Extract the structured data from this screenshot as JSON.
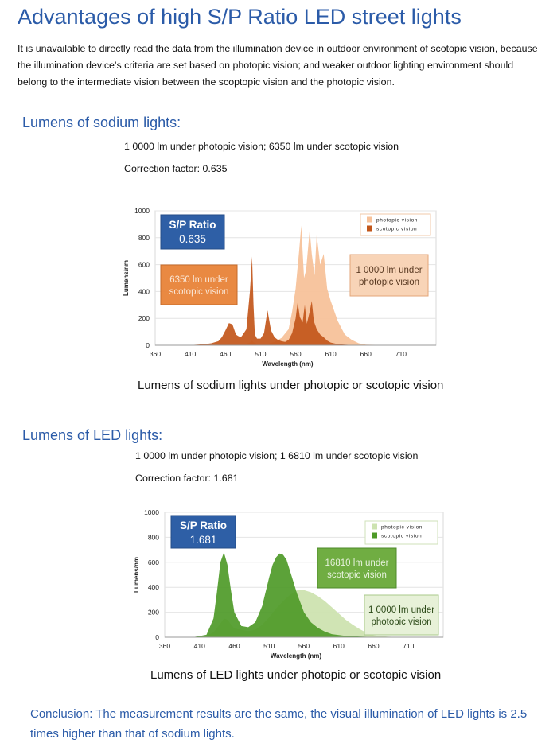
{
  "title": "Advantages of high S/P Ratio LED street lights",
  "intro": "It is unavailable to directly read the data from the illumination device in outdoor environment of scotopic vision, because the illumination device’s criteria are set based on photopic vision; and weaker outdoor lighting environment should belong to the intermediate vision between the scoptopic vision and the photopic vision.",
  "sodium": {
    "heading": "Lumens of sodium lights:",
    "lumens_line": "1 0000 lm under photopic vision; 6350 lm under scotopic vision",
    "factor_line": "Correction factor: 0.635",
    "caption": "Lumens of sodium lights under photopic or scotopic vision"
  },
  "led": {
    "heading": "Lumens of LED lights:",
    "lumens_line": "1 0000 lm under photopic vision; 1 6810 lm under scotopic vision",
    "factor_line": "Correction factor: 1.681",
    "caption": "Lumens of LED lights under photopic or scotopic vision"
  },
  "conclusion": "Conclusion: The measurement results are the same, the visual illumination of LED lights is 2.5 times higher than that of sodium lights.",
  "chart_data": [
    {
      "type": "area",
      "xlabel": "Wavelength (nm)",
      "ylabel": "Lumens/nm",
      "xlim": [
        360,
        760
      ],
      "ylim": [
        0,
        1000
      ],
      "x_ticks": [
        360,
        410,
        460,
        510,
        560,
        610,
        660,
        710
      ],
      "y_ticks": [
        0,
        200,
        400,
        600,
        800,
        1000
      ],
      "grid": true,
      "legend_position": "top-right",
      "ratio_box": {
        "label": "S/P Ratio",
        "value": "0.635"
      },
      "annotations": [
        {
          "text": "6350 lm under scotopic vision",
          "series": "scotopic vision"
        },
        {
          "text": "1 0000 lm under photopic vision",
          "series": "photopic vision"
        }
      ],
      "series": [
        {
          "name": "photopic vision",
          "color": "#f7c29a",
          "x": [
            380,
            420,
            440,
            450,
            460,
            465,
            470,
            480,
            490,
            495,
            498,
            500,
            505,
            510,
            520,
            530,
            540,
            550,
            555,
            560,
            565,
            568,
            572,
            575,
            580,
            583,
            587,
            590,
            595,
            600,
            605,
            610,
            620,
            630,
            640,
            650,
            660,
            700
          ],
          "y": [
            0,
            0,
            3,
            5,
            8,
            14,
            8,
            6,
            12,
            20,
            35,
            22,
            10,
            10,
            10,
            25,
            55,
            120,
            250,
            420,
            700,
            890,
            500,
            560,
            860,
            680,
            520,
            820,
            600,
            680,
            420,
            330,
            180,
            80,
            40,
            15,
            5,
            0
          ]
        },
        {
          "name": "scotopic vision",
          "color": "#c2561a",
          "x": [
            380,
            410,
            420,
            430,
            440,
            450,
            455,
            460,
            465,
            470,
            475,
            478,
            482,
            485,
            490,
            495,
            498,
            500,
            502,
            505,
            510,
            515,
            520,
            525,
            530,
            535,
            540,
            545,
            550,
            555,
            560,
            563,
            566,
            570,
            573,
            576,
            580,
            583,
            586,
            590,
            595,
            600,
            605,
            610,
            620,
            630,
            640,
            700
          ],
          "y": [
            0,
            2,
            5,
            8,
            15,
            30,
            60,
            110,
            165,
            155,
            80,
            70,
            60,
            80,
            120,
            400,
            660,
            300,
            80,
            50,
            50,
            90,
            260,
            110,
            60,
            40,
            30,
            25,
            40,
            90,
            200,
            320,
            210,
            170,
            300,
            160,
            250,
            330,
            180,
            120,
            80,
            60,
            35,
            20,
            8,
            4,
            2,
            0
          ]
        }
      ]
    },
    {
      "type": "area",
      "xlabel": "Wavelength (nm)",
      "ylabel": "Lumens/nm",
      "xlim": [
        360,
        760
      ],
      "ylim": [
        0,
        1000
      ],
      "x_ticks": [
        360,
        410,
        460,
        510,
        560,
        610,
        660,
        710
      ],
      "y_ticks": [
        0,
        200,
        400,
        600,
        800,
        1000
      ],
      "grid": true,
      "legend_position": "top-right",
      "ratio_box": {
        "label": "S/P Ratio",
        "value": "1.681"
      },
      "annotations": [
        {
          "text": "16810 lm under scotopic vision",
          "series": "scotopic vision"
        },
        {
          "text": "1 0000 lm under photopic vision",
          "series": "photopic vision"
        }
      ],
      "series": [
        {
          "name": "photopic vision",
          "color": "#cde3b0",
          "x": [
            400,
            420,
            430,
            440,
            445,
            450,
            460,
            470,
            480,
            490,
            500,
            510,
            520,
            530,
            540,
            550,
            555,
            560,
            570,
            580,
            590,
            600,
            610,
            620,
            630,
            640,
            650,
            660,
            680,
            700
          ],
          "y": [
            0,
            10,
            40,
            110,
            150,
            140,
            70,
            60,
            50,
            60,
            100,
            160,
            230,
            290,
            340,
            375,
            380,
            378,
            360,
            330,
            290,
            240,
            190,
            140,
            100,
            65,
            35,
            15,
            5,
            0
          ]
        },
        {
          "name": "scotopic vision",
          "color": "#4e9a28",
          "x": [
            400,
            420,
            430,
            435,
            440,
            445,
            450,
            455,
            460,
            470,
            480,
            490,
            500,
            510,
            515,
            520,
            525,
            530,
            535,
            540,
            550,
            560,
            570,
            580,
            590,
            600,
            620,
            650,
            700
          ],
          "y": [
            0,
            20,
            150,
            360,
            600,
            680,
            580,
            380,
            200,
            90,
            80,
            120,
            250,
            480,
            580,
            640,
            670,
            660,
            620,
            530,
            350,
            200,
            120,
            75,
            45,
            25,
            10,
            3,
            0
          ]
        }
      ]
    }
  ]
}
